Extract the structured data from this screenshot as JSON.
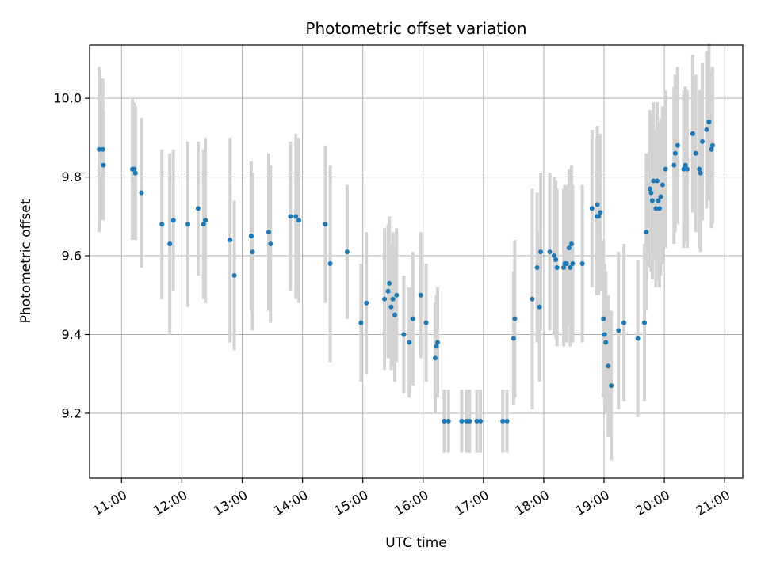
{
  "chart_data": {
    "type": "scatter",
    "title": "Photometric offset variation",
    "xlabel": "UTC time",
    "ylabel": "Photometric offset",
    "x_unit": "hours UTC",
    "xlim": [
      10.47,
      21.3
    ],
    "ylim": [
      9.035,
      10.135
    ],
    "grid": true,
    "x_ticks": [
      {
        "value": 11,
        "label": "11:00"
      },
      {
        "value": 12,
        "label": "12:00"
      },
      {
        "value": 13,
        "label": "13:00"
      },
      {
        "value": 14,
        "label": "14:00"
      },
      {
        "value": 15,
        "label": "15:00"
      },
      {
        "value": 16,
        "label": "16:00"
      },
      {
        "value": 17,
        "label": "17:00"
      },
      {
        "value": 18,
        "label": "18:00"
      },
      {
        "value": 19,
        "label": "19:00"
      },
      {
        "value": 20,
        "label": "20:00"
      },
      {
        "value": 21,
        "label": "21:00"
      }
    ],
    "y_ticks": [
      {
        "value": 9.2,
        "label": "9.2"
      },
      {
        "value": 9.4,
        "label": "9.4"
      },
      {
        "value": 9.6,
        "label": "9.6"
      },
      {
        "value": 9.8,
        "label": "9.8"
      },
      {
        "value": 10.0,
        "label": "10.0"
      }
    ],
    "series": [
      {
        "name": "offset",
        "point_color": "#1f77b4",
        "errorbar_color": "#d3d3d3",
        "points": [
          {
            "x": 10.63,
            "y": 9.87,
            "err": 0.21
          },
          {
            "x": 10.69,
            "y": 9.87,
            "err": 0.18
          },
          {
            "x": 10.7,
            "y": 9.83,
            "err": 0.14
          },
          {
            "x": 11.18,
            "y": 9.82,
            "err": 0.18
          },
          {
            "x": 11.21,
            "y": 9.82,
            "err": 0.17
          },
          {
            "x": 11.23,
            "y": 9.81,
            "err": 0.17
          },
          {
            "x": 11.33,
            "y": 9.76,
            "err": 0.19
          },
          {
            "x": 11.67,
            "y": 9.68,
            "err": 0.19
          },
          {
            "x": 11.8,
            "y": 9.63,
            "err": 0.23
          },
          {
            "x": 11.86,
            "y": 9.69,
            "err": 0.18
          },
          {
            "x": 12.1,
            "y": 9.68,
            "err": 0.21
          },
          {
            "x": 12.27,
            "y": 9.72,
            "err": 0.17
          },
          {
            "x": 12.36,
            "y": 9.68,
            "err": 0.19
          },
          {
            "x": 12.39,
            "y": 9.69,
            "err": 0.21
          },
          {
            "x": 12.8,
            "y": 9.64,
            "err": 0.26
          },
          {
            "x": 12.87,
            "y": 9.55,
            "err": 0.19
          },
          {
            "x": 13.15,
            "y": 9.65,
            "err": 0.19
          },
          {
            "x": 13.17,
            "y": 9.61,
            "err": 0.2
          },
          {
            "x": 13.44,
            "y": 9.66,
            "err": 0.2
          },
          {
            "x": 13.47,
            "y": 9.63,
            "err": 0.2
          },
          {
            "x": 13.8,
            "y": 9.7,
            "err": 0.19
          },
          {
            "x": 13.89,
            "y": 9.7,
            "err": 0.21
          },
          {
            "x": 13.94,
            "y": 9.69,
            "err": 0.21
          },
          {
            "x": 14.38,
            "y": 9.68,
            "err": 0.2
          },
          {
            "x": 14.46,
            "y": 9.58,
            "err": 0.25
          },
          {
            "x": 14.74,
            "y": 9.61,
            "err": 0.17
          },
          {
            "x": 14.97,
            "y": 9.43,
            "err": 0.15
          },
          {
            "x": 15.06,
            "y": 9.48,
            "err": 0.18
          },
          {
            "x": 15.36,
            "y": 9.49,
            "err": 0.18
          },
          {
            "x": 15.42,
            "y": 9.51,
            "err": 0.17
          },
          {
            "x": 15.44,
            "y": 9.53,
            "err": 0.17
          },
          {
            "x": 15.47,
            "y": 9.47,
            "err": 0.16
          },
          {
            "x": 15.5,
            "y": 9.49,
            "err": 0.17
          },
          {
            "x": 15.53,
            "y": 9.45,
            "err": 0.17
          },
          {
            "x": 15.56,
            "y": 9.5,
            "err": 0.17
          },
          {
            "x": 15.68,
            "y": 9.4,
            "err": 0.15
          },
          {
            "x": 15.77,
            "y": 9.38,
            "err": 0.14
          },
          {
            "x": 15.83,
            "y": 9.44,
            "err": 0.17
          },
          {
            "x": 15.96,
            "y": 9.5,
            "err": 0.16
          },
          {
            "x": 16.05,
            "y": 9.43,
            "err": 0.15
          },
          {
            "x": 16.2,
            "y": 9.34,
            "err": 0.14
          },
          {
            "x": 16.22,
            "y": 9.37,
            "err": 0.13
          },
          {
            "x": 16.24,
            "y": 9.38,
            "err": 0.14
          },
          {
            "x": 16.35,
            "y": 9.18,
            "err": 0.08
          },
          {
            "x": 16.42,
            "y": 9.18,
            "err": 0.08
          },
          {
            "x": 16.64,
            "y": 9.18,
            "err": 0.08
          },
          {
            "x": 16.72,
            "y": 9.18,
            "err": 0.08
          },
          {
            "x": 16.77,
            "y": 9.18,
            "err": 0.08
          },
          {
            "x": 16.89,
            "y": 9.18,
            "err": 0.08
          },
          {
            "x": 16.95,
            "y": 9.18,
            "err": 0.08
          },
          {
            "x": 17.32,
            "y": 9.18,
            "err": 0.08
          },
          {
            "x": 17.39,
            "y": 9.18,
            "err": 0.08
          },
          {
            "x": 17.5,
            "y": 9.39,
            "err": 0.17
          },
          {
            "x": 17.52,
            "y": 9.44,
            "err": 0.2
          },
          {
            "x": 17.81,
            "y": 9.49,
            "err": 0.28
          },
          {
            "x": 17.89,
            "y": 9.57,
            "err": 0.19
          },
          {
            "x": 17.93,
            "y": 9.47,
            "err": 0.19
          },
          {
            "x": 17.95,
            "y": 9.61,
            "err": 0.2
          },
          {
            "x": 18.1,
            "y": 9.61,
            "err": 0.2
          },
          {
            "x": 18.17,
            "y": 9.6,
            "err": 0.2
          },
          {
            "x": 18.2,
            "y": 9.59,
            "err": 0.2
          },
          {
            "x": 18.22,
            "y": 9.57,
            "err": 0.2
          },
          {
            "x": 18.33,
            "y": 9.57,
            "err": 0.2
          },
          {
            "x": 18.35,
            "y": 9.58,
            "err": 0.2
          },
          {
            "x": 18.38,
            "y": 9.58,
            "err": 0.2
          },
          {
            "x": 18.42,
            "y": 9.62,
            "err": 0.2
          },
          {
            "x": 18.44,
            "y": 9.57,
            "err": 0.2
          },
          {
            "x": 18.46,
            "y": 9.63,
            "err": 0.2
          },
          {
            "x": 18.48,
            "y": 9.58,
            "err": 0.2
          },
          {
            "x": 18.64,
            "y": 9.58,
            "err": 0.2
          },
          {
            "x": 18.8,
            "y": 9.72,
            "err": 0.2
          },
          {
            "x": 18.88,
            "y": 9.7,
            "err": 0.2
          },
          {
            "x": 18.89,
            "y": 9.73,
            "err": 0.2
          },
          {
            "x": 18.91,
            "y": 9.7,
            "err": 0.2
          },
          {
            "x": 18.94,
            "y": 9.71,
            "err": 0.2
          },
          {
            "x": 18.99,
            "y": 9.44,
            "err": 0.2
          },
          {
            "x": 19.01,
            "y": 9.4,
            "err": 0.18
          },
          {
            "x": 19.03,
            "y": 9.38,
            "err": 0.18
          },
          {
            "x": 19.07,
            "y": 9.32,
            "err": 0.18
          },
          {
            "x": 19.12,
            "y": 9.27,
            "err": 0.19
          },
          {
            "x": 19.24,
            "y": 9.41,
            "err": 0.2
          },
          {
            "x": 19.33,
            "y": 9.43,
            "err": 0.2
          },
          {
            "x": 19.56,
            "y": 9.39,
            "err": 0.2
          },
          {
            "x": 19.67,
            "y": 9.43,
            "err": 0.2
          },
          {
            "x": 19.7,
            "y": 9.66,
            "err": 0.2
          },
          {
            "x": 19.76,
            "y": 9.77,
            "err": 0.2
          },
          {
            "x": 19.78,
            "y": 9.76,
            "err": 0.2
          },
          {
            "x": 19.8,
            "y": 9.74,
            "err": 0.2
          },
          {
            "x": 19.82,
            "y": 9.79,
            "err": 0.2
          },
          {
            "x": 19.86,
            "y": 9.72,
            "err": 0.2
          },
          {
            "x": 19.88,
            "y": 9.79,
            "err": 0.2
          },
          {
            "x": 19.9,
            "y": 9.74,
            "err": 0.2
          },
          {
            "x": 19.92,
            "y": 9.72,
            "err": 0.2
          },
          {
            "x": 19.94,
            "y": 9.75,
            "err": 0.2
          },
          {
            "x": 19.97,
            "y": 9.78,
            "err": 0.2
          },
          {
            "x": 20.02,
            "y": 9.82,
            "err": 0.2
          },
          {
            "x": 20.16,
            "y": 9.83,
            "err": 0.2
          },
          {
            "x": 20.18,
            "y": 9.86,
            "err": 0.2
          },
          {
            "x": 20.22,
            "y": 9.88,
            "err": 0.2
          },
          {
            "x": 20.32,
            "y": 9.82,
            "err": 0.2
          },
          {
            "x": 20.35,
            "y": 9.83,
            "err": 0.2
          },
          {
            "x": 20.38,
            "y": 9.82,
            "err": 0.2
          },
          {
            "x": 20.47,
            "y": 9.91,
            "err": 0.2
          },
          {
            "x": 20.52,
            "y": 9.86,
            "err": 0.2
          },
          {
            "x": 20.58,
            "y": 9.82,
            "err": 0.2
          },
          {
            "x": 20.6,
            "y": 9.81,
            "err": 0.2
          },
          {
            "x": 20.63,
            "y": 9.89,
            "err": 0.2
          },
          {
            "x": 20.7,
            "y": 9.92,
            "err": 0.2
          },
          {
            "x": 20.74,
            "y": 9.94,
            "err": 0.2
          },
          {
            "x": 20.78,
            "y": 9.87,
            "err": 0.2
          },
          {
            "x": 20.8,
            "y": 9.88,
            "err": 0.2
          }
        ]
      }
    ]
  }
}
